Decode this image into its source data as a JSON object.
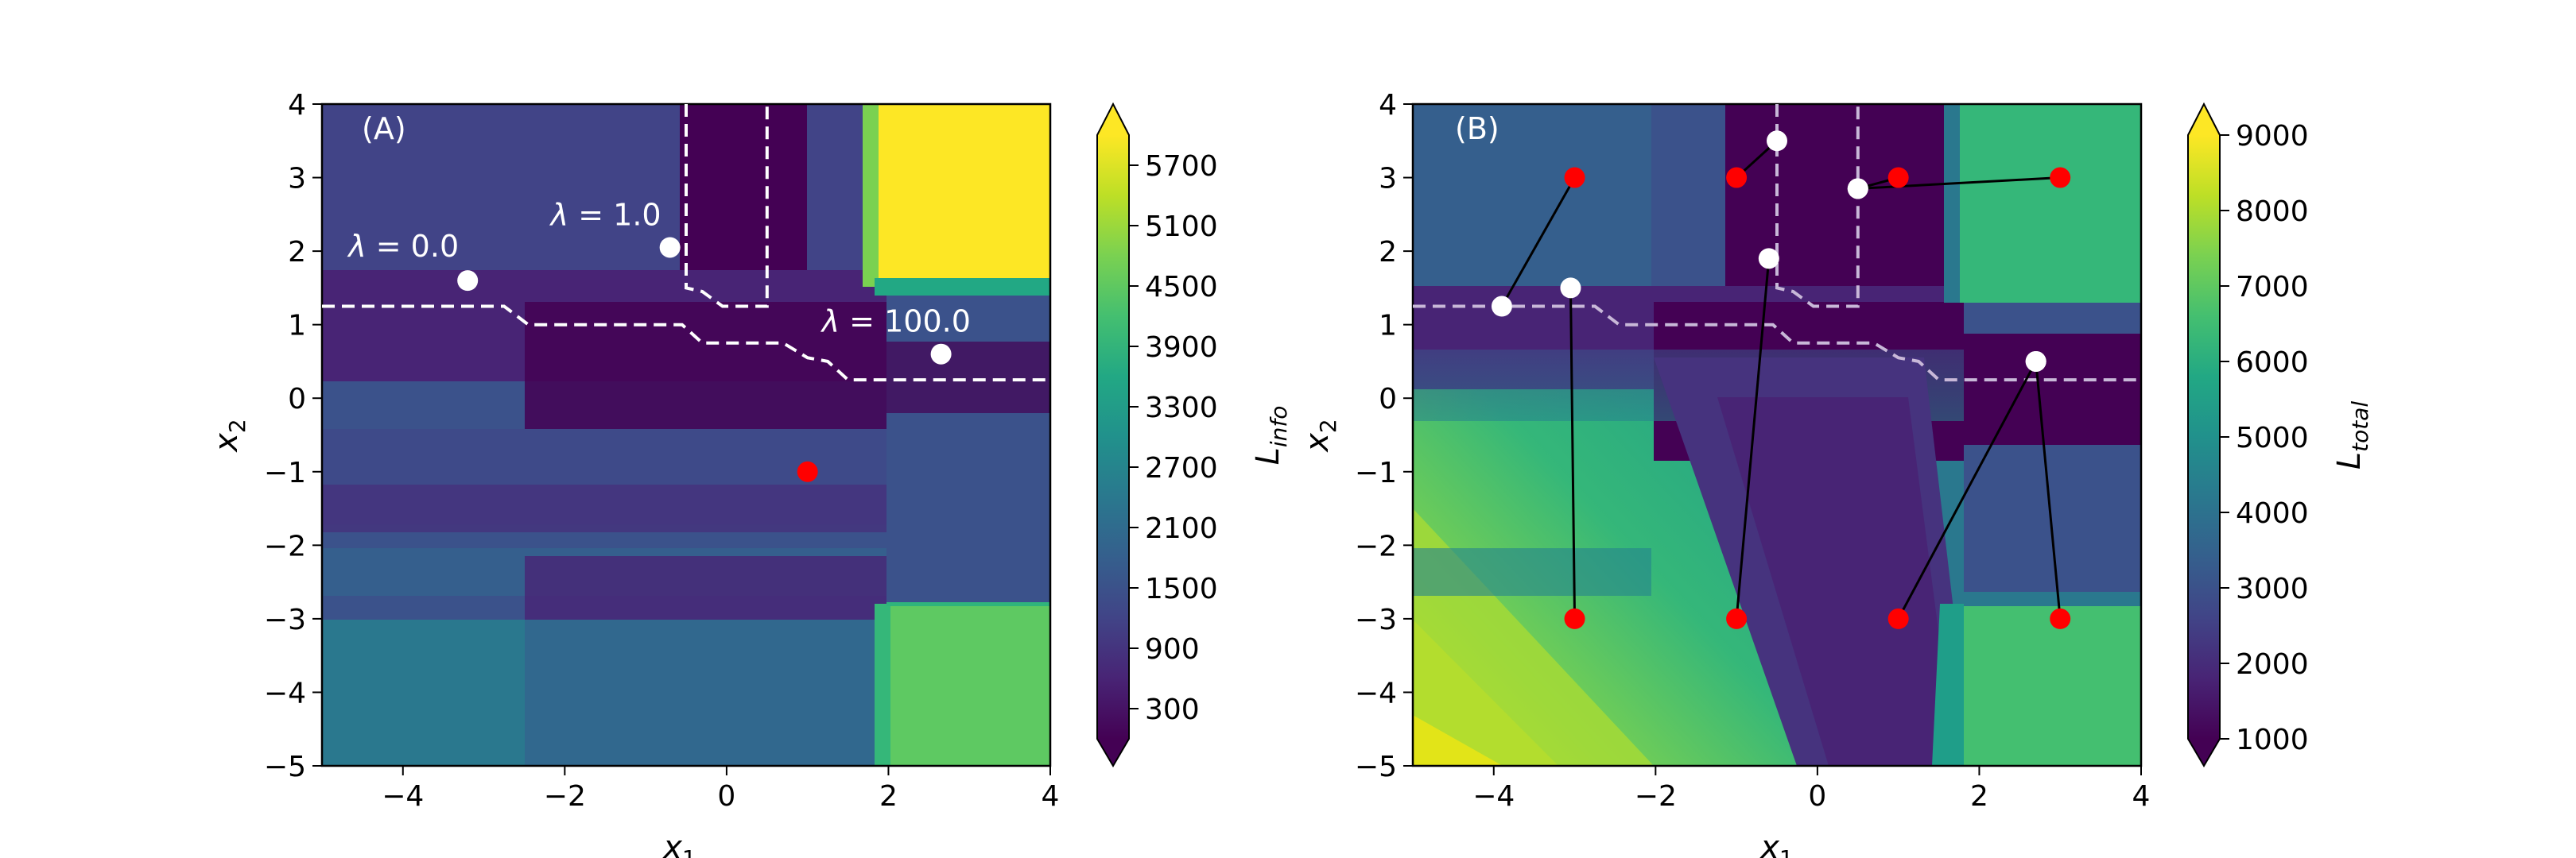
{
  "chart_data": [
    {
      "type": "heatmap",
      "panel_label": "(A)",
      "xlabel": "x1",
      "ylabel": "x2",
      "xlim": [
        -5,
        4
      ],
      "ylim": [
        -5,
        4
      ],
      "xticks": [
        -4,
        -2,
        0,
        2,
        4
      ],
      "yticks": [
        4,
        3,
        2,
        1,
        0,
        -1,
        -2,
        -3,
        -4,
        -5
      ],
      "colorbar": {
        "label": "L_info",
        "label_main": "L",
        "label_sub": "info",
        "min": 0,
        "max": 6000,
        "ticks": [
          5700,
          5100,
          4500,
          3900,
          3300,
          2700,
          2100,
          1500,
          900,
          300
        ]
      },
      "threshold_label": "λ = 0.0, 1.0, 100.0",
      "points": [
        {
          "x": -3.2,
          "y": 1.6,
          "color": "white",
          "label": "λ = 0.0",
          "label_sym": "λ",
          "label_val": " = 0.0"
        },
        {
          "x": -0.7,
          "y": 2.05,
          "color": "white",
          "label": "λ = 1.0",
          "label_sym": "λ",
          "label_val": " = 1.0"
        },
        {
          "x": 2.65,
          "y": 0.6,
          "color": "white",
          "label": "λ = 100.0",
          "label_sym": "λ",
          "label_val": " = 100.0"
        },
        {
          "x": 1.0,
          "y": -1.0,
          "color": "red"
        }
      ],
      "boundary": [
        [
          -5,
          1.25
        ],
        [
          -2.75,
          1.25
        ],
        [
          -2.45,
          1.0
        ],
        [
          -0.55,
          1.0
        ],
        [
          -0.3,
          0.75
        ],
        [
          0.7,
          0.75
        ],
        [
          1.0,
          0.55
        ],
        [
          1.25,
          0.5
        ],
        [
          1.5,
          0.25
        ],
        [
          4,
          0.25
        ]
      ],
      "boundary2": [
        [
          -0.5,
          4
        ],
        [
          -0.5,
          1.5
        ],
        [
          -0.3,
          1.45
        ],
        [
          -0.05,
          1.25
        ],
        [
          0.5,
          1.25
        ],
        [
          0.5,
          4
        ]
      ]
    },
    {
      "type": "heatmap",
      "panel_label": "(B)",
      "xlabel": "x1",
      "ylabel": "x2",
      "xlim": [
        -5,
        4
      ],
      "ylim": [
        -5,
        4
      ],
      "xticks": [
        -4,
        -2,
        0,
        2,
        4
      ],
      "yticks": [
        4,
        3,
        2,
        1,
        0,
        -1,
        -2,
        -3,
        -4,
        -5
      ],
      "colorbar": {
        "label": "L_total",
        "label_main": "L",
        "label_sub": "total",
        "min": 1000,
        "max": 9000,
        "ticks": [
          9000,
          8000,
          7000,
          6000,
          5000,
          4000,
          3000,
          2000,
          1000
        ]
      },
      "trajectories": [
        {
          "start": [
            -3.0,
            3.0
          ],
          "end": [
            -3.9,
            1.25
          ]
        },
        {
          "start": [
            -3.0,
            -3.0
          ],
          "end": [
            -3.05,
            1.5
          ]
        },
        {
          "start": [
            -1.0,
            3.0
          ],
          "end": [
            -0.5,
            3.5
          ]
        },
        {
          "start": [
            -1.0,
            -3.0
          ],
          "end": [
            -0.6,
            1.9
          ]
        },
        {
          "start": [
            1.0,
            3.0
          ],
          "end": [
            0.5,
            2.85
          ]
        },
        {
          "start": [
            3.0,
            3.0
          ],
          "end": [
            0.5,
            2.85
          ]
        },
        {
          "start": [
            1.0,
            -3.0
          ],
          "end": [
            2.7,
            0.5
          ]
        },
        {
          "start": [
            3.0,
            -3.0
          ],
          "end": [
            2.7,
            0.5
          ]
        }
      ]
    }
  ]
}
